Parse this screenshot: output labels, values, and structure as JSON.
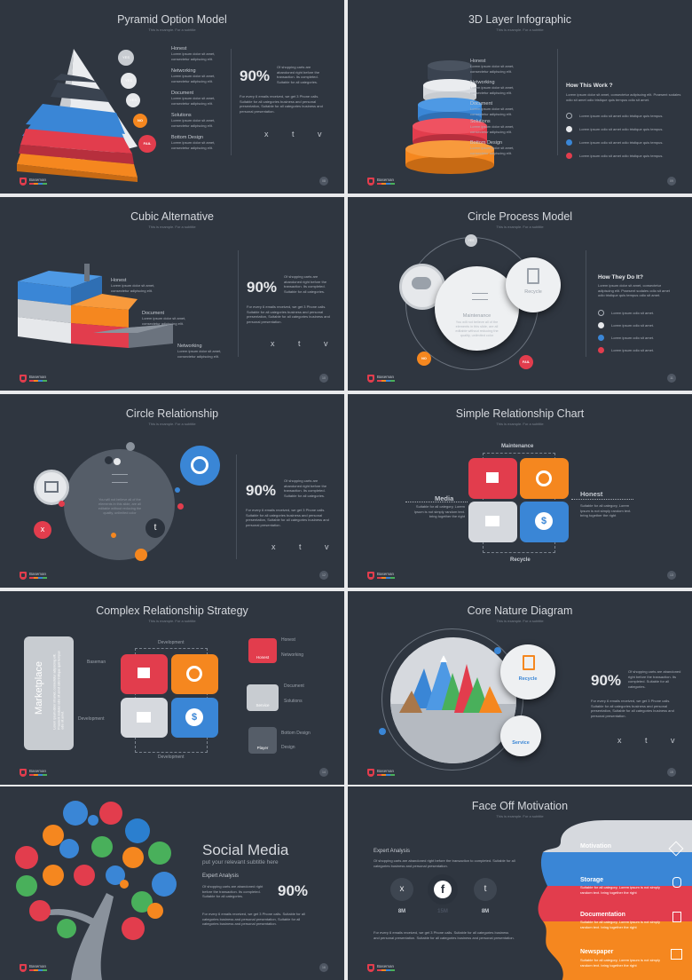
{
  "common": {
    "subtitle": "This is example. For a subtitle",
    "logo": "Baseman",
    "pct": "90%",
    "lorem": "Lorem ipsum dolor sit amet, consectetur adipiscing elit.",
    "shopping": "Of shopping carts are abandoned right before the transaction. Its completed. Suitable for all categories.",
    "every": "For every 6 emails received, we get 3 Phone calls. Suitable for all categories business and personal presentation, Suitable for all categories business and personal presentation.",
    "socials": "x t v",
    "check_text": "Lorem ipsum odio sit amet odio tristique quis tempus."
  },
  "s1": {
    "title": "Pyramid Option Model",
    "page": "08",
    "levels": [
      {
        "name": "Honest",
        "badge": "YES"
      },
      {
        "name": "Networking",
        "badge": "YES"
      },
      {
        "name": "Document",
        "badge": "YES"
      },
      {
        "name": "Solutions",
        "badge": "NO"
      },
      {
        "name": "Bottom Design",
        "badge": "FAIL"
      }
    ]
  },
  "s2": {
    "title": "3D Layer Infographic",
    "page": "09",
    "layers": [
      "Honest",
      "Networking",
      "Document",
      "Solutions",
      "Bottom Design"
    ],
    "how": "How This Work ?",
    "how_text": "Lorem ipsum dolor sit amet, consectetur adipiscing elit. Praesent sodales odio sit amet odio tristique quis tempus odio sit amet."
  },
  "s3": {
    "title": "Cubic Alternative",
    "page": "10",
    "labels": [
      "Honest",
      "Document",
      "Networking"
    ]
  },
  "s4": {
    "title": "Circle Process Model",
    "page": "11",
    "yes": "YES",
    "no": "NO",
    "fail": "FAIL",
    "maintenance": "Maintenance",
    "maint_text": "You will not believe all of the elements in this slide, are all editable without reducing the quality, unlimited color",
    "recycle": "Recycle",
    "how": "How They Do It?",
    "how_text": "Lorem ipsum dolor sit amet, consectetur adipiscing elit. Praesent sodales odio sit amet odio tristique quis tempus odio sit amet.",
    "rows": [
      "Lorem ipsum odio sit amet.",
      "Lorem ipsum odio sit amet.",
      "Lorem ipsum odio sit amet.",
      "Lorem ipsum odio sit amet."
    ]
  },
  "s5": {
    "title": "Circle Relationship",
    "page": "12",
    "inner": "You will not believe all of the elements in this slide, are all editable without reducing the quality, unlimited color",
    "x": "x",
    "t": "t"
  },
  "s6": {
    "title": "Simple Relationship Chart",
    "page": "13",
    "maintenance": "Maintenance",
    "media": "Media",
    "honest": "Honest",
    "recycle": "Recycle",
    "side_text": "Suitable for all category, Lorem Ipsum is not simply random text. bring together the right"
  },
  "s7": {
    "title": "Complex Relationship Strategy",
    "page": "14",
    "market": "Marketplace",
    "market_text": "Lorem ipsum dolor sit amet, consectetur adipiscing elit. Praesent sodales odio sit amet odio tristique quis tempus odio sit amet.",
    "baseman": "Baseman",
    "dev": "Development",
    "right": [
      {
        "btn": "Honest",
        "a": "Honest",
        "b": "Networking"
      },
      {
        "btn": "Service",
        "a": "Document",
        "b": "Solutions"
      },
      {
        "btn": "Player",
        "a": "Bottom Design",
        "b": "Design"
      }
    ]
  },
  "s8": {
    "title": "Core Nature Diagram",
    "page": "15",
    "recycle": "Recycle",
    "service": "Service"
  },
  "s9": {
    "title": "Social Media",
    "sub": "put your relevant subtitle here",
    "expert": "Expert Analysis",
    "page": "16"
  },
  "s10": {
    "title": "Face Off Motivation",
    "expert": "Expert Analysis",
    "expert_text": "Of shopping carts are abandoned right before the transaction to completed. Suitable for all categories business and personal presentation.",
    "stats": [
      {
        "icon": "x",
        "val": "8M"
      },
      {
        "icon": "f",
        "val": "15M"
      },
      {
        "icon": "t",
        "val": "8M"
      }
    ],
    "bottom_text": "For every 6 emails received, we get 3 Phone calls. Suitable for all categories business and personal presentation. Suitable for all categories business and personal presentation.",
    "bands": [
      {
        "name": "Motivation",
        "color": "#d6d9de"
      },
      {
        "name": "Storage",
        "color": "#3a86d6"
      },
      {
        "name": "Documentation",
        "color": "#e23d4d"
      },
      {
        "name": "Newspaper",
        "color": "#f5871f"
      }
    ],
    "band_text": "Suitable for all category, Lorem ipsum is not simply random text. bring together the right"
  },
  "colors": {
    "bg": "#2f3640",
    "red": "#e23d4d",
    "orange": "#f5871f",
    "blue": "#3a86d6",
    "grey": "#d6d9de",
    "green": "#49b05b"
  }
}
